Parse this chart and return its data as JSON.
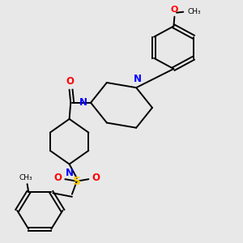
{
  "bg_color": "#e8e8e8",
  "atom_colors": {
    "N": "#0000ff",
    "O": "#ff0000",
    "S": "#ffcc00"
  },
  "bond_color": "#000000",
  "bond_lw": 1.4
}
